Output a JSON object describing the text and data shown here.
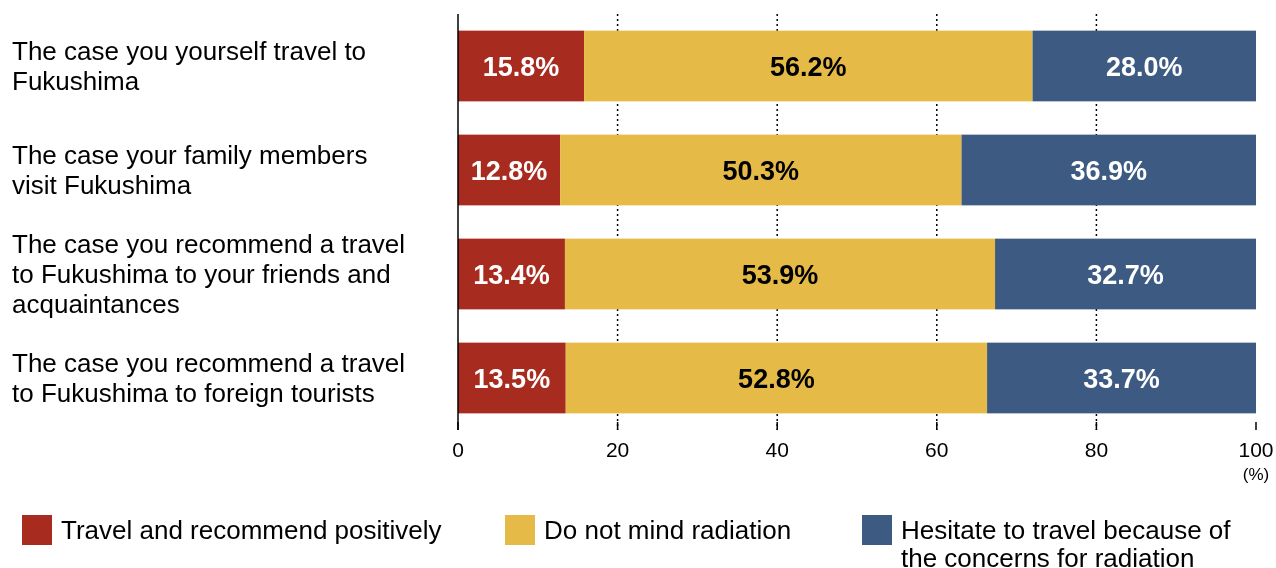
{
  "chart_data": {
    "type": "bar",
    "orientation": "horizontal",
    "stacked": true,
    "categories": [
      "The case you yourself travel to Fukushima",
      "The case your family members visit Fukushima",
      "The case you recommend a travel to Fukushima to your friends and acquaintances",
      "The case you recommend a travel to Fukushima to foreign tourists"
    ],
    "series": [
      {
        "name": "Travel and recommend positively",
        "color": "#a82b20",
        "values": [
          15.8,
          12.8,
          13.4,
          13.5
        ],
        "value_labels": [
          "15.8%",
          "12.8%",
          "13.4%",
          "13.5%"
        ]
      },
      {
        "name": "Do not mind radiation",
        "color": "#e5ba47",
        "values": [
          56.2,
          50.3,
          53.9,
          52.8
        ],
        "value_labels": [
          "56.2%",
          "50.3%",
          "53.9%",
          "52.8%"
        ]
      },
      {
        "name": "Hesitate to travel because of the concerns for radiation",
        "color": "#3d5b82",
        "values": [
          28.0,
          36.9,
          32.7,
          33.7
        ],
        "value_labels": [
          "28.0%",
          "36.9%",
          "32.7%",
          "33.7%"
        ]
      }
    ],
    "xlim": [
      0,
      100
    ],
    "xticks": [
      0,
      20,
      40,
      60,
      80,
      100
    ],
    "xlabel": "(%)",
    "grid": "x",
    "legend": "bottom"
  }
}
